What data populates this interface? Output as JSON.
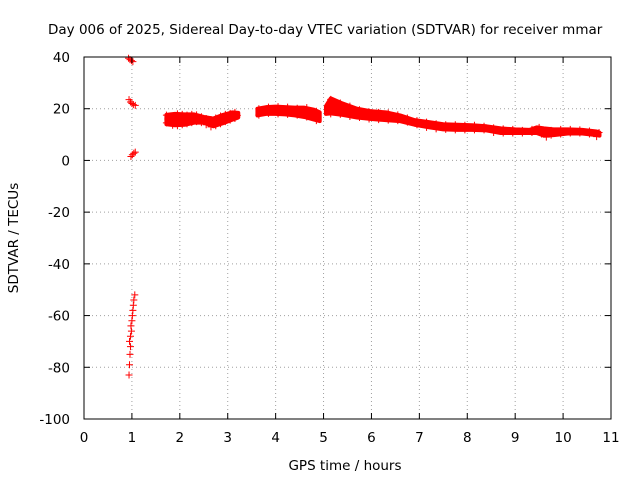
{
  "chart_data": {
    "type": "scatter",
    "title": "Day 006 of 2025, Sidereal Day-to-day VTEC variation (SDTVAR) for receiver mmar",
    "xlabel": "GPS time / hours",
    "ylabel": "SDTVAR / TECUs",
    "xlim": [
      0,
      11
    ],
    "ylim": [
      -100,
      40
    ],
    "x_ticks": [
      "0",
      "1",
      "2",
      "3",
      "4",
      "5",
      "6",
      "7",
      "8",
      "9",
      "10",
      "11"
    ],
    "y_ticks": [
      "40",
      "20",
      "0",
      "-20",
      "-40",
      "-60",
      "-80",
      "-100"
    ],
    "grid": true,
    "marker": "+",
    "series": [
      {
        "name": "SDTVAR",
        "color": "#ff0000",
        "points": [
          [
            0.93,
            39.5
          ],
          [
            0.96,
            39.0
          ],
          [
            0.99,
            38.6
          ],
          [
            1.02,
            38.2
          ],
          [
            0.94,
            23.5
          ],
          [
            0.97,
            22.6
          ],
          [
            1.0,
            22.0
          ],
          [
            1.03,
            21.6
          ],
          [
            1.07,
            21.3
          ],
          [
            0.98,
            1.5
          ],
          [
            1.01,
            2.2
          ],
          [
            1.04,
            2.8
          ],
          [
            1.07,
            3.2
          ],
          [
            0.94,
            -83
          ],
          [
            0.95,
            -79
          ],
          [
            0.96,
            -75
          ],
          [
            0.97,
            -72
          ],
          [
            0.95,
            -70
          ],
          [
            0.97,
            -68
          ],
          [
            0.99,
            -66
          ],
          [
            0.98,
            -64
          ],
          [
            1.0,
            -62
          ],
          [
            1.01,
            -60
          ],
          [
            1.02,
            -58
          ],
          [
            1.03,
            -56
          ],
          [
            1.04,
            -54
          ],
          [
            1.06,
            -52
          ],
          [
            1.72,
            17.5
          ],
          [
            1.72,
            14.5
          ],
          [
            1.75,
            16.0
          ],
          [
            1.85,
            17.2
          ],
          [
            1.85,
            13.6
          ],
          [
            1.95,
            18.0
          ],
          [
            1.95,
            13.4
          ],
          [
            2.05,
            17.8
          ],
          [
            2.05,
            13.8
          ],
          [
            2.15,
            17.5
          ],
          [
            2.15,
            14.2
          ],
          [
            2.25,
            17.8
          ],
          [
            2.25,
            14.6
          ],
          [
            2.35,
            17.6
          ],
          [
            2.35,
            15.0
          ],
          [
            2.45,
            16.9
          ],
          [
            2.45,
            14.6
          ],
          [
            2.55,
            16.2
          ],
          [
            2.55,
            13.8
          ],
          [
            2.65,
            15.8
          ],
          [
            2.65,
            13.0
          ],
          [
            2.75,
            16.4
          ],
          [
            2.75,
            13.4
          ],
          [
            2.85,
            17.2
          ],
          [
            2.85,
            14.2
          ],
          [
            2.95,
            17.8
          ],
          [
            2.95,
            15.0
          ],
          [
            3.05,
            18.2
          ],
          [
            3.05,
            15.6
          ],
          [
            3.15,
            18.6
          ],
          [
            3.15,
            16.2
          ],
          [
            3.2,
            17.4
          ],
          [
            3.65,
            17.5
          ],
          [
            3.65,
            20.0
          ],
          [
            3.85,
            18.2
          ],
          [
            3.85,
            20.6
          ],
          [
            4.05,
            18.0
          ],
          [
            4.05,
            20.8
          ],
          [
            4.25,
            17.8
          ],
          [
            4.25,
            20.6
          ],
          [
            4.45,
            17.5
          ],
          [
            4.45,
            20.2
          ],
          [
            4.65,
            16.8
          ],
          [
            4.65,
            20.4
          ],
          [
            4.85,
            15.4
          ],
          [
            4.85,
            19.0
          ],
          [
            5.15,
            23.6
          ],
          [
            5.35,
            22.2
          ],
          [
            5.55,
            21.0
          ],
          [
            5.75,
            19.6
          ],
          [
            5.95,
            18.8
          ],
          [
            5.15,
            18.0
          ],
          [
            5.35,
            17.8
          ],
          [
            5.55,
            17.0
          ],
          [
            5.75,
            16.6
          ],
          [
            5.95,
            16.0
          ],
          [
            6.15,
            18.6
          ],
          [
            6.15,
            15.8
          ],
          [
            6.35,
            18.4
          ],
          [
            6.35,
            15.6
          ],
          [
            6.55,
            17.6
          ],
          [
            6.55,
            15.4
          ],
          [
            6.75,
            16.4
          ],
          [
            6.75,
            14.8
          ],
          [
            6.95,
            15.4
          ],
          [
            6.95,
            13.8
          ],
          [
            7.15,
            14.8
          ],
          [
            7.15,
            12.8
          ],
          [
            7.35,
            14.2
          ],
          [
            7.35,
            12.2
          ],
          [
            7.55,
            13.8
          ],
          [
            7.55,
            12.0
          ],
          [
            7.75,
            13.8
          ],
          [
            7.75,
            11.8
          ],
          [
            7.95,
            13.6
          ],
          [
            7.95,
            11.8
          ],
          [
            8.15,
            13.6
          ],
          [
            8.15,
            11.8
          ],
          [
            8.35,
            13.2
          ],
          [
            8.35,
            11.8
          ],
          [
            8.55,
            12.6
          ],
          [
            8.55,
            10.8
          ],
          [
            8.75,
            12.2
          ],
          [
            8.75,
            10.6
          ],
          [
            8.95,
            12.0
          ],
          [
            8.95,
            10.6
          ],
          [
            9.15,
            11.6
          ],
          [
            9.15,
            10.6
          ],
          [
            9.35,
            12.0
          ],
          [
            9.35,
            10.8
          ],
          [
            9.5,
            12.8
          ],
          [
            9.55,
            10.2
          ],
          [
            9.65,
            9.0
          ],
          [
            9.75,
            11.6
          ],
          [
            9.75,
            9.8
          ],
          [
            9.95,
            12.0
          ],
          [
            9.95,
            10.2
          ],
          [
            10.15,
            12.0
          ],
          [
            10.15,
            10.6
          ],
          [
            10.35,
            11.8
          ],
          [
            10.35,
            10.6
          ],
          [
            10.55,
            11.4
          ],
          [
            10.55,
            10.2
          ],
          [
            10.7,
            9.2
          ],
          [
            10.75,
            10.8
          ]
        ],
        "bands": [
          [
            [
              1.72,
              14.0,
              17.6
            ],
            [
              1.9,
              13.6,
              18.0
            ],
            [
              2.1,
              13.8,
              17.8
            ],
            [
              2.3,
              14.6,
              17.8
            ],
            [
              2.5,
              14.6,
              16.8
            ],
            [
              2.7,
              13.2,
              16.2
            ],
            [
              2.9,
              14.4,
              17.6
            ],
            [
              3.1,
              15.8,
              18.6
            ],
            [
              3.22,
              16.6,
              18.4
            ]
          ],
          [
            [
              3.62,
              17.4,
              20.0
            ],
            [
              3.8,
              18.0,
              20.6
            ],
            [
              4.0,
              18.0,
              20.8
            ],
            [
              4.2,
              17.8,
              20.6
            ],
            [
              4.4,
              17.4,
              20.4
            ],
            [
              4.6,
              16.8,
              20.4
            ],
            [
              4.8,
              15.8,
              19.6
            ],
            [
              4.92,
              15.2,
              18.6
            ]
          ],
          [
            [
              5.05,
              18.0,
              21.0
            ],
            [
              5.15,
              18.2,
              24.0
            ],
            [
              5.4,
              17.6,
              22.0
            ],
            [
              5.7,
              16.6,
              20.0
            ],
            [
              6.0,
              16.0,
              19.0
            ],
            [
              6.3,
              15.6,
              18.6
            ],
            [
              6.6,
              15.2,
              17.4
            ],
            [
              6.9,
              13.8,
              15.6
            ],
            [
              7.2,
              12.8,
              14.8
            ],
            [
              7.5,
              12.0,
              14.0
            ],
            [
              7.8,
              11.8,
              13.8
            ],
            [
              8.1,
              11.8,
              13.6
            ],
            [
              8.4,
              11.6,
              13.2
            ],
            [
              8.7,
              10.6,
              12.4
            ],
            [
              9.0,
              10.6,
              12.0
            ],
            [
              9.3,
              10.6,
              11.8
            ],
            [
              9.45,
              10.6,
              12.8
            ],
            [
              9.6,
              9.6,
              12.4
            ],
            [
              9.8,
              9.8,
              12.0
            ],
            [
              10.1,
              10.4,
              12.0
            ],
            [
              10.4,
              10.4,
              11.8
            ],
            [
              10.7,
              9.8,
              11.2
            ],
            [
              10.76,
              9.6,
              10.8
            ]
          ]
        ]
      }
    ]
  }
}
